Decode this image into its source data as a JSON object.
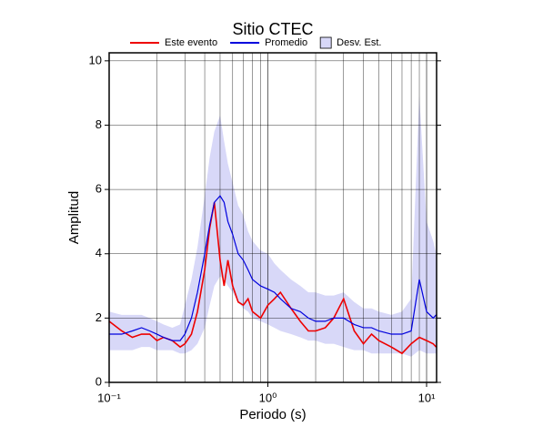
{
  "chart_data": {
    "type": "line",
    "title": "Sitio CTEC",
    "xlabel": "Periodo (s)",
    "ylabel": "Amplitud",
    "xscale": "log",
    "grid": true,
    "legend": "top",
    "xlim": [
      0.1,
      11.56
    ],
    "ylim": [
      0,
      10.25
    ],
    "xticks": [
      {
        "value": 0.1,
        "label": "10⁻¹"
      },
      {
        "value": 1,
        "label": "10⁰"
      },
      {
        "value": 10,
        "label": "10¹"
      }
    ],
    "yticks": [
      0,
      2,
      4,
      6,
      8,
      10
    ],
    "x": [
      0.1,
      0.12,
      0.14,
      0.16,
      0.18,
      0.2,
      0.22,
      0.25,
      0.28,
      0.3,
      0.33,
      0.36,
      0.4,
      0.43,
      0.46,
      0.5,
      0.53,
      0.56,
      0.6,
      0.65,
      0.7,
      0.75,
      0.8,
      0.9,
      1.0,
      1.1,
      1.2,
      1.4,
      1.6,
      1.8,
      2.0,
      2.3,
      2.6,
      3.0,
      3.5,
      4,
      4.5,
      5,
      6,
      7,
      8,
      9,
      10,
      11,
      11.5
    ],
    "series": [
      {
        "name": "Este evento",
        "color": "#ee0000",
        "values": [
          1.9,
          1.6,
          1.4,
          1.5,
          1.5,
          1.3,
          1.4,
          1.3,
          1.1,
          1.2,
          1.5,
          2.2,
          3.5,
          4.8,
          5.6,
          3.8,
          3.0,
          3.8,
          3.0,
          2.5,
          2.4,
          2.6,
          2.2,
          2.0,
          2.4,
          2.6,
          2.8,
          2.3,
          1.9,
          1.6,
          1.6,
          1.7,
          2.0,
          2.6,
          1.6,
          1.2,
          1.5,
          1.3,
          1.1,
          0.9,
          1.2,
          1.4,
          1.3,
          1.2,
          1.1
        ]
      },
      {
        "name": "Promedio",
        "color": "#0000dd",
        "values": [
          1.5,
          1.5,
          1.6,
          1.7,
          1.6,
          1.5,
          1.4,
          1.3,
          1.3,
          1.5,
          2.0,
          2.8,
          4.0,
          4.9,
          5.6,
          5.8,
          5.6,
          5.0,
          4.6,
          4.0,
          3.8,
          3.5,
          3.2,
          3.0,
          2.9,
          2.8,
          2.6,
          2.3,
          2.2,
          2.0,
          1.9,
          1.9,
          2.0,
          2.0,
          1.8,
          1.7,
          1.7,
          1.6,
          1.5,
          1.5,
          1.6,
          3.2,
          2.2,
          2.0,
          2.1
        ]
      },
      {
        "name": "Desv. Est.",
        "color": "#d8d8f8",
        "band": true,
        "upper": [
          2.2,
          2.1,
          2.1,
          2.1,
          2.0,
          1.9,
          1.8,
          1.7,
          1.8,
          2.4,
          3.2,
          4.2,
          5.8,
          7.0,
          7.8,
          8.3,
          7.5,
          6.8,
          6.2,
          5.5,
          5.2,
          4.7,
          4.4,
          4.1,
          4.0,
          3.7,
          3.5,
          3.2,
          3.0,
          2.8,
          2.8,
          2.7,
          2.7,
          2.8,
          2.5,
          2.3,
          2.3,
          2.2,
          2.1,
          2.2,
          2.6,
          8.9,
          5.0,
          4.4,
          4.0
        ],
        "lower": [
          1.0,
          1.0,
          1.0,
          1.1,
          1.1,
          1.0,
          1.0,
          1.0,
          0.9,
          0.9,
          1.0,
          1.2,
          1.7,
          2.4,
          3.0,
          3.3,
          3.2,
          3.0,
          2.8,
          2.5,
          2.3,
          2.2,
          2.0,
          1.9,
          1.8,
          1.7,
          1.6,
          1.5,
          1.4,
          1.3,
          1.3,
          1.2,
          1.2,
          1.1,
          1.0,
          1.0,
          0.9,
          0.9,
          0.9,
          0.9,
          0.8,
          1.0,
          0.9,
          0.9,
          0.9
        ]
      }
    ]
  }
}
